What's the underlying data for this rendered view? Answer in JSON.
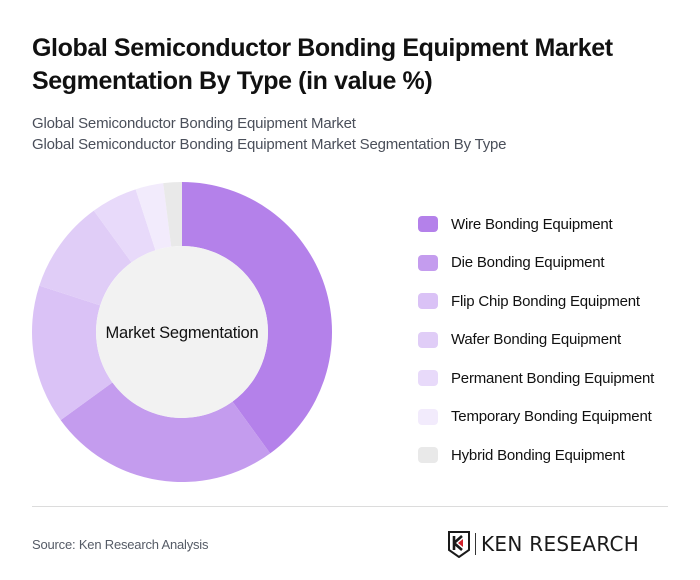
{
  "header": {
    "title": "Global Semiconductor Bonding Equipment Market Segmentation By Type (in value %)",
    "subtitle_line1": "Global Semiconductor Bonding Equipment Market",
    "subtitle_line2": "Global Semiconductor Bonding Equipment Market Segmentation By Type"
  },
  "chart_data": {
    "type": "pie",
    "variant": "donut",
    "title": "Global Semiconductor Bonding Equipment Market Segmentation By Type (in value %)",
    "center_label": "Market Segmentation",
    "categories": [
      "Wire Bonding Equipment",
      "Die Bonding Equipment",
      "Flip Chip Bonding Equipment",
      "Wafer Bonding Equipment",
      "Permanent Bonding Equipment",
      "Temporary Bonding Equipment",
      "Hybrid Bonding Equipment"
    ],
    "values": [
      40,
      25,
      15,
      10,
      5,
      3,
      2
    ],
    "colors": [
      "#b481ea",
      "#c49cee",
      "#dac2f6",
      "#e0cdf7",
      "#e8dafa",
      "#f2ebfc",
      "#e9e9e9"
    ],
    "legend_position": "right",
    "start_angle": "top, clockwise"
  },
  "legend": {
    "items": [
      {
        "label": "Wire Bonding Equipment",
        "color": "#b481ea"
      },
      {
        "label": "Die Bonding Equipment",
        "color": "#c49cee"
      },
      {
        "label": "Flip Chip Bonding Equipment",
        "color": "#dac2f6"
      },
      {
        "label": "Wafer Bonding Equipment",
        "color": "#e0cdf7"
      },
      {
        "label": "Permanent Bonding Equipment",
        "color": "#e8dafa"
      },
      {
        "label": "Temporary Bonding Equipment",
        "color": "#f2ebfc"
      },
      {
        "label": "Hybrid Bonding Equipment",
        "color": "#e9e9e9"
      }
    ]
  },
  "footer": {
    "source": "Source: Ken Research Analysis",
    "logo_text": "KEN RESEARCH",
    "logo_icon": "k-shield-logo-icon"
  }
}
